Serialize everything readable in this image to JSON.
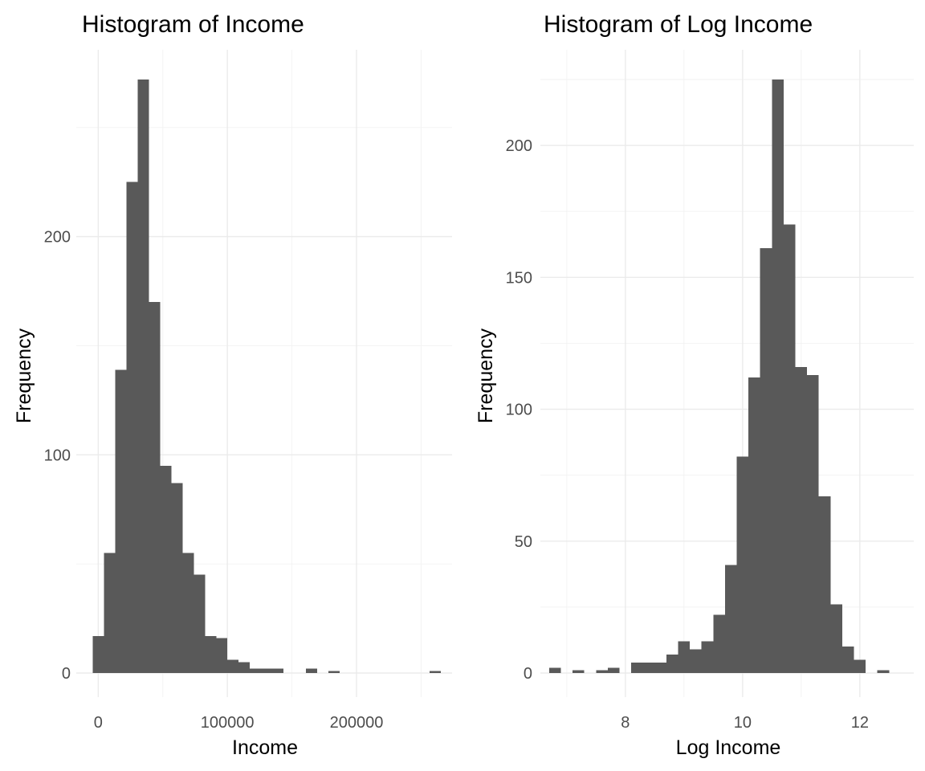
{
  "colors": {
    "bar": "#595959",
    "grid_major": "#ebebeb",
    "grid_minor": "#f2f2f2",
    "tick_text": "#4d4d4d"
  },
  "chart_data": [
    {
      "type": "bar",
      "title": "Histogram of Income",
      "xlabel": "Income",
      "ylabel": "Frequency",
      "xlim": [
        -17000,
        274000
      ],
      "ylim": [
        0,
        272
      ],
      "x_ticks": [
        0,
        100000,
        200000
      ],
      "x_tick_labels": [
        "0",
        "100000",
        "200000"
      ],
      "y_ticks": [
        0,
        100,
        200
      ],
      "y_tick_labels": [
        "0",
        "100",
        "200"
      ],
      "grid": true,
      "bin_width": 8700,
      "bins_start": [
        -4350,
        4350,
        13050,
        21750,
        30450,
        39150,
        47850,
        56550,
        65250,
        73950,
        82650,
        91350,
        100050,
        108750,
        117450,
        126150,
        134850,
        160950,
        178350,
        256650
      ],
      "counts": [
        17,
        55,
        139,
        225,
        272,
        170,
        95,
        87,
        55,
        45,
        17,
        16,
        6,
        5,
        2,
        2,
        2,
        2,
        1,
        1
      ]
    },
    {
      "type": "bar",
      "title": "Histogram of Log Income",
      "xlabel": "Log Income",
      "ylabel": "Frequency",
      "xlim": [
        6.55,
        12.92
      ],
      "ylim": [
        0,
        225
      ],
      "x_ticks": [
        8,
        10,
        12
      ],
      "x_tick_labels": [
        "8",
        "10",
        "12"
      ],
      "y_ticks": [
        0,
        50,
        100,
        150,
        200
      ],
      "y_tick_labels": [
        "0",
        "50",
        "100",
        "150",
        "200"
      ],
      "grid": true,
      "bin_width": 0.2,
      "bins_start": [
        6.7,
        7.1,
        7.5,
        7.7,
        8.1,
        8.3,
        8.5,
        8.7,
        8.9,
        9.1,
        9.3,
        9.5,
        9.7,
        9.9,
        10.1,
        10.3,
        10.5,
        10.7,
        10.9,
        11.1,
        11.3,
        11.5,
        11.7,
        11.9,
        12.3
      ],
      "counts": [
        2,
        1,
        1,
        2,
        4,
        4,
        4,
        7,
        12,
        9,
        12,
        22,
        41,
        82,
        112,
        161,
        225,
        170,
        116,
        113,
        67,
        26,
        10,
        5,
        1
      ]
    }
  ]
}
